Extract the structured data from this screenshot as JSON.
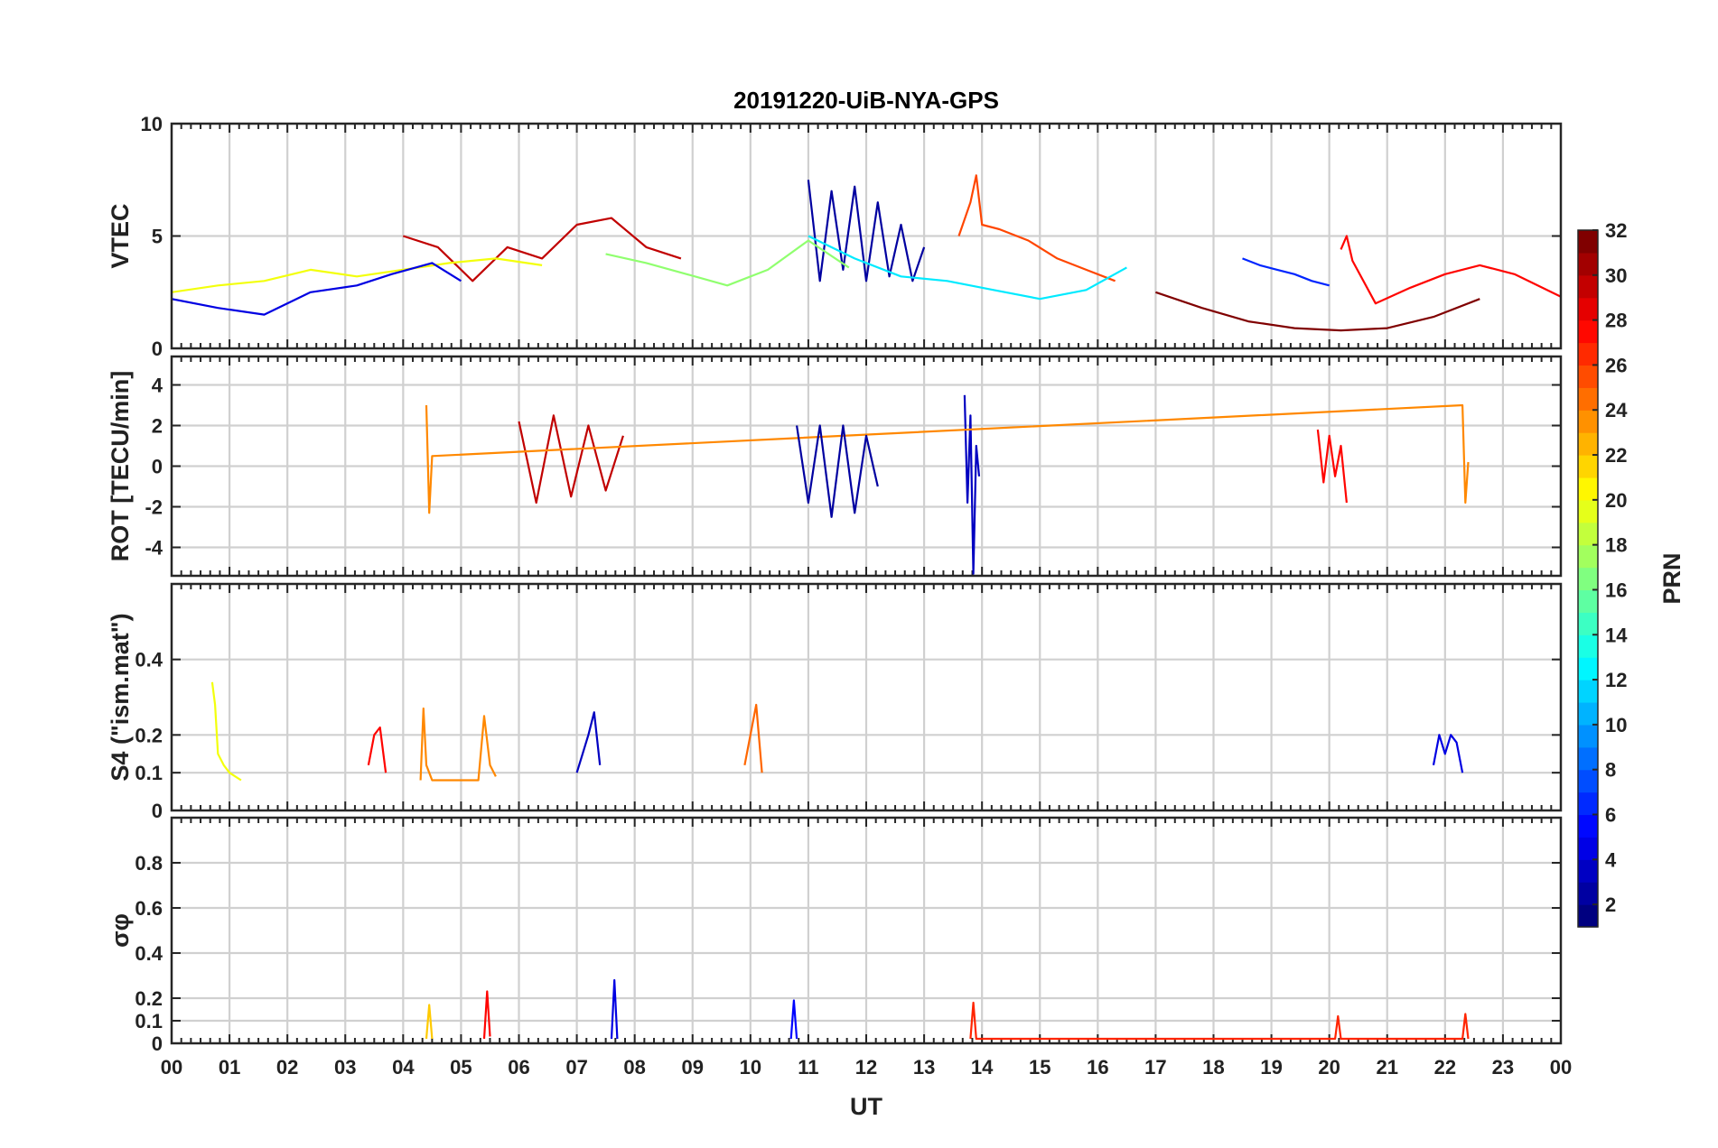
{
  "chart_data": {
    "type": "line",
    "title": "20191220-UiB-NYA-GPS",
    "xlabel": "UT",
    "x_ticks": [
      "00",
      "01",
      "02",
      "03",
      "04",
      "05",
      "06",
      "07",
      "08",
      "09",
      "10",
      "11",
      "12",
      "13",
      "14",
      "15",
      "16",
      "17",
      "18",
      "19",
      "20",
      "21",
      "22",
      "23",
      "00"
    ],
    "xlim": [
      0,
      24
    ],
    "colorbar": {
      "label": "PRN",
      "range": [
        1,
        32
      ],
      "ticks": [
        "2",
        "4",
        "6",
        "8",
        "10",
        "12",
        "14",
        "16",
        "18",
        "20",
        "22",
        "24",
        "26",
        "28",
        "30",
        "32"
      ],
      "colormap": "jet"
    },
    "panels": [
      {
        "id": "vtec",
        "ylabel": "VTEC",
        "ylim": [
          0,
          10
        ],
        "yticks": [
          0,
          5,
          10
        ],
        "ytick_labels": [
          "0",
          "5",
          "10"
        ],
        "series": [
          {
            "prn": 2,
            "x": [
              11.0,
              11.2,
              11.4,
              11.6,
              11.8,
              12.0,
              12.2,
              12.4,
              12.6,
              12.8,
              13.0
            ],
            "y": [
              7.5,
              3.0,
              7.0,
              3.5,
              7.2,
              3.0,
              6.5,
              3.2,
              5.5,
              3.0,
              4.5
            ]
          },
          {
            "prn": 6,
            "x": [
              18.5,
              18.8,
              19.1,
              19.4,
              19.7,
              20.0
            ],
            "y": [
              4.0,
              3.7,
              3.5,
              3.3,
              3.0,
              2.8
            ]
          },
          {
            "prn": 26,
            "x": [
              13.6,
              13.8,
              13.9,
              14.0,
              14.3,
              14.8,
              15.3,
              15.8,
              16.3
            ],
            "y": [
              5.0,
              6.5,
              7.7,
              5.5,
              5.3,
              4.8,
              4.0,
              3.5,
              3.0
            ]
          },
          {
            "prn": 30,
            "x": [
              4.0,
              4.6,
              5.2,
              5.8,
              6.4,
              7.0,
              7.6,
              8.2,
              8.8
            ],
            "y": [
              5.0,
              4.5,
              3.0,
              4.5,
              4.0,
              5.5,
              5.8,
              4.5,
              4.0
            ]
          },
          {
            "prn": 12,
            "x": [
              11.0,
              11.8,
              12.6,
              13.4,
              14.2,
              15.0,
              15.8,
              16.5
            ],
            "y": [
              5.0,
              4.0,
              3.2,
              3.0,
              2.6,
              2.2,
              2.6,
              3.6
            ]
          },
          {
            "prn": 20,
            "x": [
              0.0,
              0.8,
              1.6,
              2.4,
              3.2,
              4.0,
              4.8,
              5.6,
              6.4
            ],
            "y": [
              2.5,
              2.8,
              3.0,
              3.5,
              3.2,
              3.5,
              3.8,
              4.0,
              3.7
            ]
          },
          {
            "prn": 28,
            "x": [
              20.2,
              20.3,
              20.4,
              20.8,
              21.4,
              22.0,
              22.6,
              23.2,
              24.0
            ],
            "y": [
              4.4,
              5.0,
              3.9,
              2.0,
              2.7,
              3.3,
              3.7,
              3.3,
              2.3
            ]
          },
          {
            "prn": 4,
            "x": [
              0.0,
              0.8,
              1.6,
              2.4,
              3.2,
              3.8,
              4.5,
              5.0
            ],
            "y": [
              2.2,
              1.8,
              1.5,
              2.5,
              2.8,
              3.3,
              3.8,
              3.0
            ]
          },
          {
            "prn": 32,
            "x": [
              17.0,
              17.8,
              18.6,
              19.4,
              20.2,
              21.0,
              21.8,
              22.6
            ],
            "y": [
              2.5,
              1.8,
              1.2,
              0.9,
              0.8,
              0.9,
              1.4,
              2.2
            ]
          },
          {
            "prn": 17,
            "x": [
              7.5,
              8.2,
              8.9,
              9.6,
              10.3,
              11.0,
              11.7
            ],
            "y": [
              4.2,
              3.8,
              3.3,
              2.8,
              3.5,
              4.8,
              3.6
            ]
          }
        ]
      },
      {
        "id": "rot",
        "ylabel": "ROT [TECU/min]",
        "ylim": [
          -5.4,
          5.4
        ],
        "yticks": [
          -4,
          -2,
          0,
          2,
          4
        ],
        "ytick_labels": [
          "-4",
          "-2",
          "0",
          "2",
          "4"
        ],
        "series": [
          {
            "prn": 30,
            "x": [
              6.0,
              6.3,
              6.6,
              6.9,
              7.2,
              7.5,
              7.8
            ],
            "y": [
              2.2,
              -1.8,
              2.5,
              -1.5,
              2.0,
              -1.2,
              1.5
            ]
          },
          {
            "prn": 3,
            "x": [
              13.7,
              13.75,
              13.8,
              13.85,
              13.9,
              13.95
            ],
            "y": [
              3.5,
              -1.8,
              2.5,
              -5.3,
              1.0,
              -0.5
            ]
          },
          {
            "prn": 24,
            "x": [
              4.4,
              4.45,
              4.5,
              22.3,
              22.35,
              22.4
            ],
            "y": [
              3.0,
              -2.3,
              0.5,
              3.0,
              -1.8,
              0.2
            ]
          },
          {
            "prn": 2,
            "x": [
              10.8,
              11.0,
              11.2,
              11.4,
              11.6,
              11.8,
              12.0,
              12.2
            ],
            "y": [
              2.0,
              -1.8,
              2.0,
              -2.5,
              2.0,
              -2.3,
              1.5,
              -1.0
            ]
          },
          {
            "prn": 28,
            "x": [
              19.8,
              19.9,
              20.0,
              20.1,
              20.2,
              20.3
            ],
            "y": [
              1.8,
              -0.8,
              1.5,
              -0.5,
              1.0,
              -1.8
            ]
          }
        ]
      },
      {
        "id": "s4",
        "ylabel": "S4 (\"ism.mat\")",
        "ylim": [
          0,
          0.6
        ],
        "yticks": [
          0,
          0.1,
          0.2,
          0.4
        ],
        "ytick_labels": [
          "0",
          "0.1",
          "0.2",
          "0.4"
        ],
        "series": [
          {
            "prn": 20,
            "x": [
              0.7,
              0.75,
              0.8,
              0.9,
              1.0,
              1.2
            ],
            "y": [
              0.34,
              0.28,
              0.15,
              0.12,
              0.1,
              0.08
            ]
          },
          {
            "prn": 28,
            "x": [
              3.4,
              3.5,
              3.6,
              3.7
            ],
            "y": [
              0.12,
              0.2,
              0.22,
              0.1
            ]
          },
          {
            "prn": 24,
            "x": [
              4.3,
              4.35,
              4.4,
              4.5,
              5.3,
              5.4,
              5.5,
              5.6
            ],
            "y": [
              0.08,
              0.27,
              0.12,
              0.08,
              0.08,
              0.25,
              0.12,
              0.09
            ]
          },
          {
            "prn": 3,
            "x": [
              7.0,
              7.1,
              7.2,
              7.3,
              7.4
            ],
            "y": [
              0.1,
              0.15,
              0.2,
              0.26,
              0.12
            ]
          },
          {
            "prn": 25,
            "x": [
              9.9,
              10.0,
              10.1,
              10.2
            ],
            "y": [
              0.12,
              0.2,
              0.28,
              0.1
            ]
          },
          {
            "prn": 4,
            "x": [
              21.8,
              21.9,
              22.0,
              22.1,
              22.2,
              22.3
            ],
            "y": [
              0.12,
              0.2,
              0.15,
              0.2,
              0.18,
              0.1
            ]
          }
        ]
      },
      {
        "id": "sigma",
        "ylabel": "σφ",
        "ylim": [
          0,
          1.0
        ],
        "yticks": [
          0,
          0.1,
          0.2,
          0.4,
          0.6,
          0.8
        ],
        "ytick_labels": [
          "0",
          "0.1",
          "0.2",
          "0.4",
          "0.6",
          "0.8"
        ],
        "series": [
          {
            "prn": 28,
            "x": [
              5.4,
              5.45,
              5.5
            ],
            "y": [
              0.02,
              0.23,
              0.03
            ]
          },
          {
            "prn": 4,
            "x": [
              7.6,
              7.65,
              7.7
            ],
            "y": [
              0.02,
              0.28,
              0.02
            ]
          },
          {
            "prn": 22,
            "x": [
              4.4,
              4.45,
              4.5
            ],
            "y": [
              0.02,
              0.17,
              0.02
            ]
          },
          {
            "prn": 5,
            "x": [
              10.7,
              10.75,
              10.8
            ],
            "y": [
              0.02,
              0.19,
              0.02
            ]
          },
          {
            "prn": 27,
            "x": [
              13.8,
              13.85,
              13.9,
              20.1,
              20.15,
              20.2,
              22.3,
              22.35,
              22.4
            ],
            "y": [
              0.02,
              0.18,
              0.02,
              0.02,
              0.12,
              0.02,
              0.02,
              0.13,
              0.02
            ]
          }
        ]
      }
    ]
  }
}
